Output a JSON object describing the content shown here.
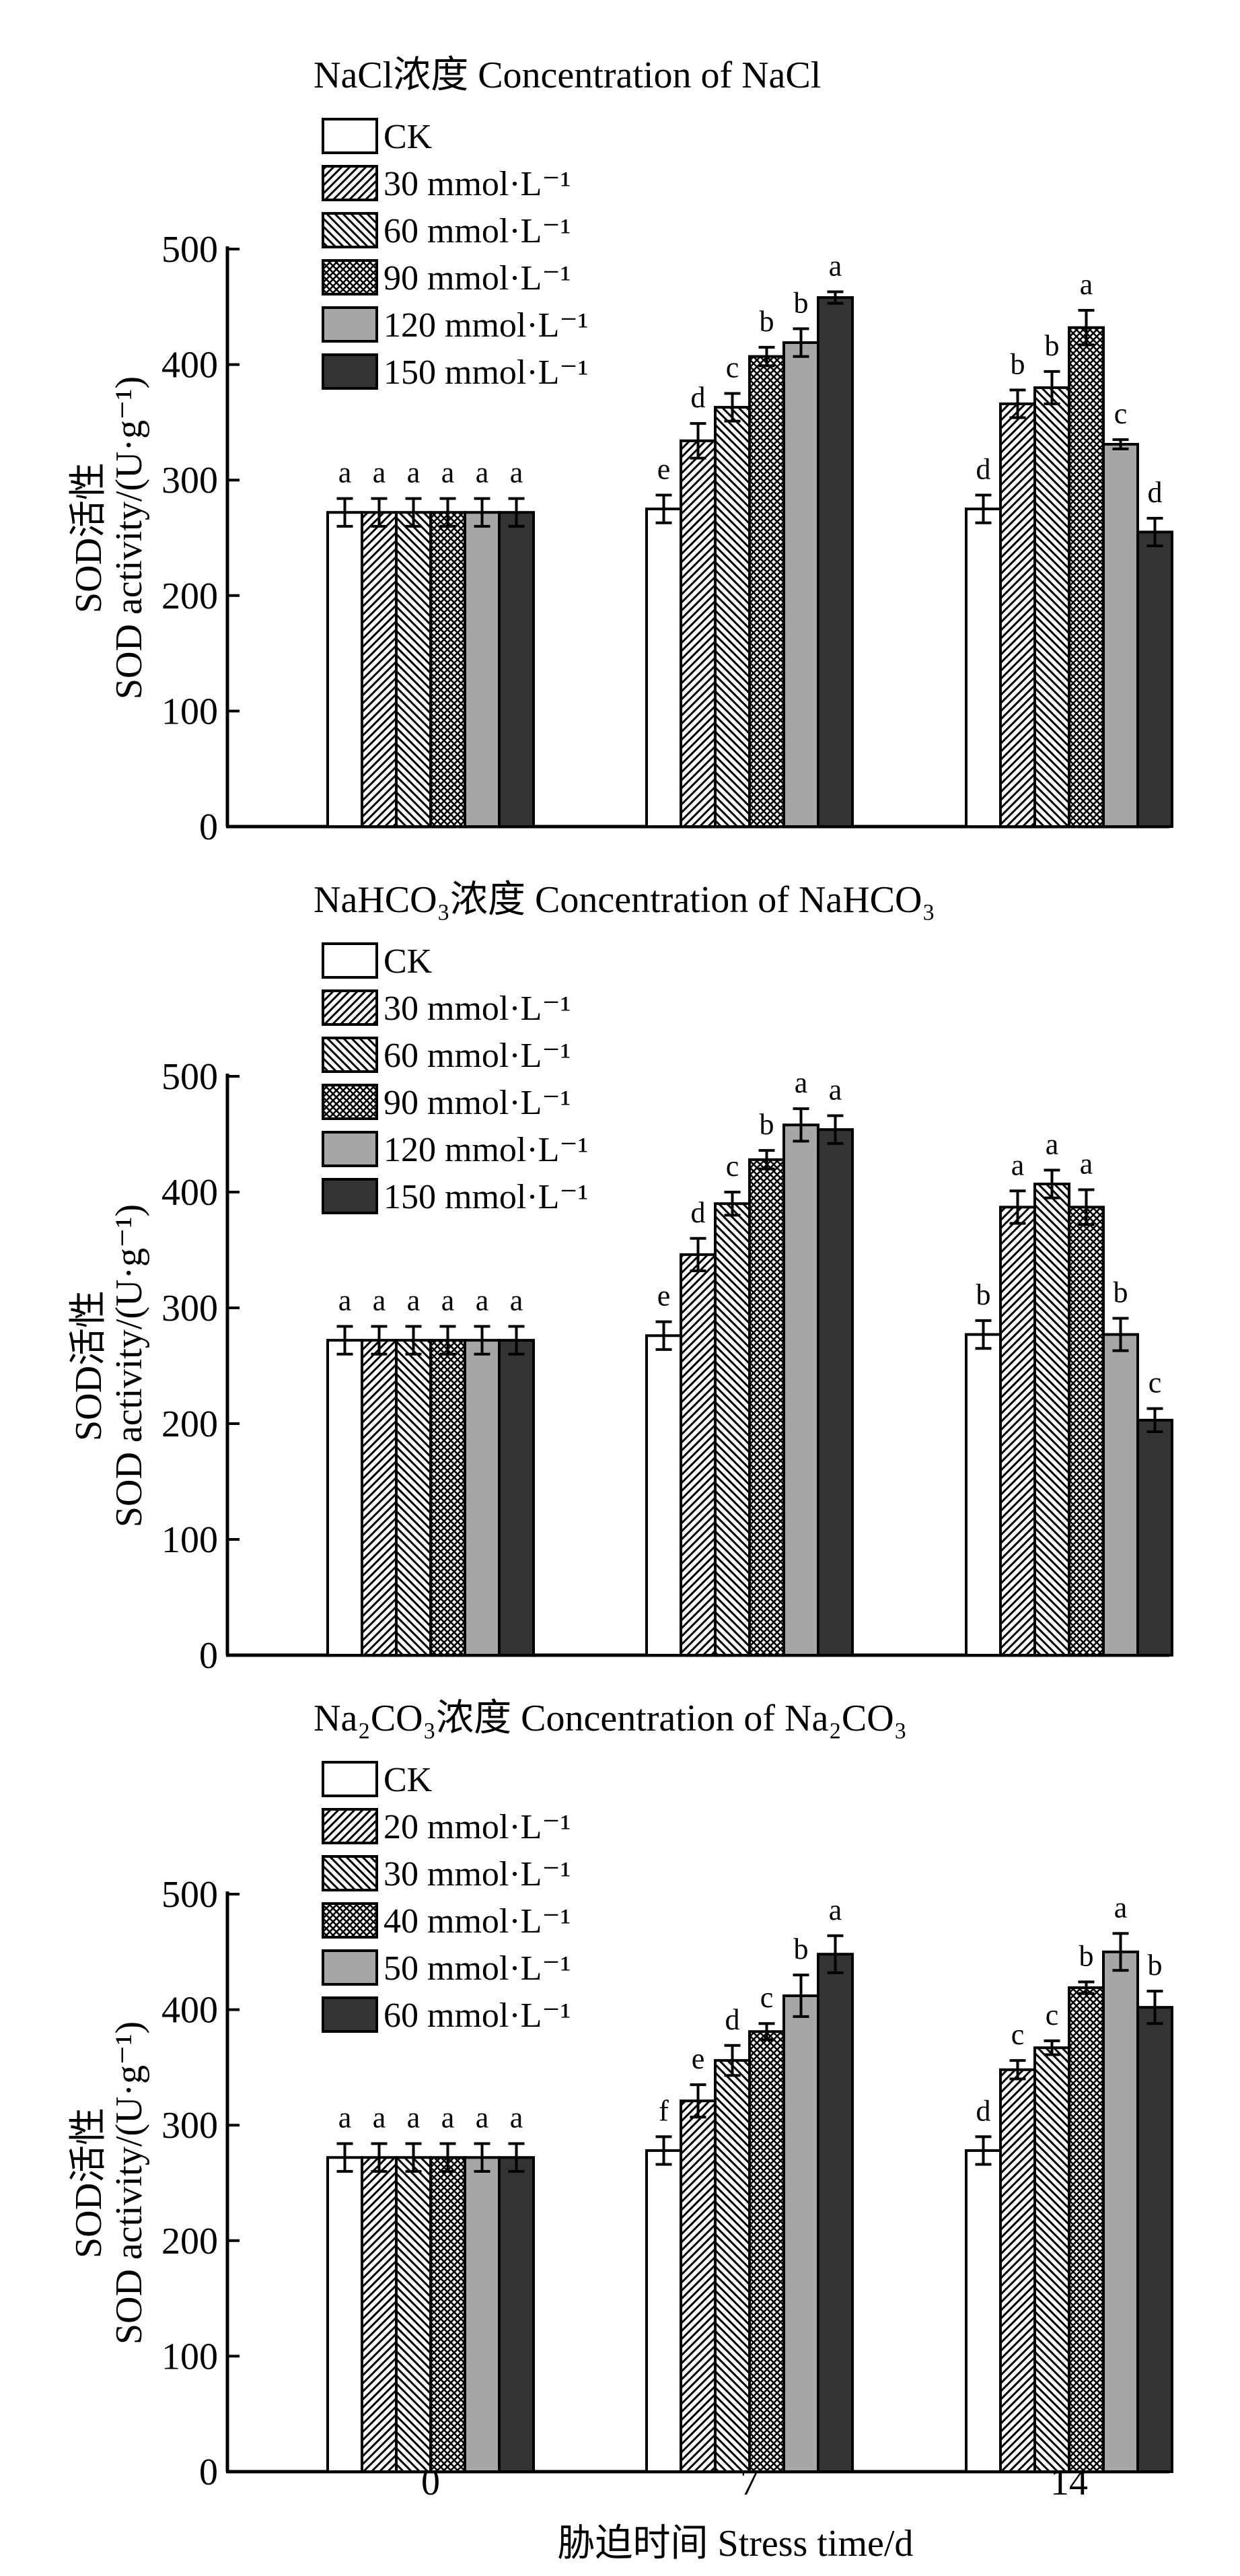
{
  "x_axis_title": "胁迫时间 Stress time/d",
  "chart_data": [
    {
      "type": "bar",
      "legend_title": "NaCl浓度 Concentration of NaCl",
      "ylabel_cn": "SOD活性",
      "ylabel_en": "SOD activity/(U·g⁻¹)",
      "ylim": [
        0,
        500
      ],
      "yticks": [
        0,
        100,
        200,
        300,
        400,
        500
      ],
      "categories": [
        "0",
        "7",
        "14"
      ],
      "series": [
        {
          "name": "CK",
          "values": [
            272,
            275,
            275
          ],
          "errors": [
            12,
            12,
            12
          ],
          "letters": [
            "a",
            "e",
            "d"
          ]
        },
        {
          "name": "30 mmol·L⁻¹",
          "values": [
            272,
            334,
            366
          ],
          "errors": [
            12,
            15,
            12
          ],
          "letters": [
            "a",
            "d",
            "b"
          ]
        },
        {
          "name": "60 mmol·L⁻¹",
          "values": [
            272,
            363,
            380
          ],
          "errors": [
            12,
            12,
            14
          ],
          "letters": [
            "a",
            "c",
            "b"
          ]
        },
        {
          "name": "90 mmol·L⁻¹",
          "values": [
            272,
            407,
            432
          ],
          "errors": [
            12,
            8,
            15
          ],
          "letters": [
            "a",
            "b",
            "a"
          ]
        },
        {
          "name": "120 mmol·L⁻¹",
          "values": [
            272,
            419,
            331
          ],
          "errors": [
            12,
            12,
            4
          ],
          "letters": [
            "a",
            "b",
            "c"
          ]
        },
        {
          "name": "150 mmol·L⁻¹",
          "values": [
            272,
            458,
            255
          ],
          "errors": [
            12,
            5,
            12
          ],
          "letters": [
            "a",
            "a",
            "d"
          ]
        }
      ]
    },
    {
      "type": "bar",
      "legend_title": "NaHCO₃浓度 Concentration of NaHCO₃",
      "ylabel_cn": "SOD活性",
      "ylabel_en": "SOD activity/(U·g⁻¹)",
      "ylim": [
        0,
        500
      ],
      "yticks": [
        0,
        100,
        200,
        300,
        400,
        500
      ],
      "categories": [
        "0",
        "7",
        "14"
      ],
      "series": [
        {
          "name": "CK",
          "values": [
            272,
            276,
            277
          ],
          "errors": [
            12,
            12,
            12
          ],
          "letters": [
            "a",
            "e",
            "b"
          ]
        },
        {
          "name": "30 mmol·L⁻¹",
          "values": [
            272,
            346,
            387
          ],
          "errors": [
            12,
            14,
            14
          ],
          "letters": [
            "a",
            "d",
            "a"
          ]
        },
        {
          "name": "60 mmol·L⁻¹",
          "values": [
            272,
            390,
            407
          ],
          "errors": [
            12,
            10,
            12
          ],
          "letters": [
            "a",
            "c",
            "a"
          ]
        },
        {
          "name": "90 mmol·L⁻¹",
          "values": [
            272,
            428,
            387
          ],
          "errors": [
            12,
            8,
            15
          ],
          "letters": [
            "a",
            "b",
            "a"
          ]
        },
        {
          "name": "120 mmol·L⁻¹",
          "values": [
            272,
            458,
            277
          ],
          "errors": [
            12,
            14,
            14
          ],
          "letters": [
            "a",
            "a",
            "b"
          ]
        },
        {
          "name": "150 mmol·L⁻¹",
          "values": [
            272,
            454,
            203
          ],
          "errors": [
            12,
            12,
            10
          ],
          "letters": [
            "a",
            "a",
            "c"
          ]
        }
      ]
    },
    {
      "type": "bar",
      "legend_title": "Na₂CO₃浓度 Concentration of Na₂CO₃",
      "ylabel_cn": "SOD活性",
      "ylabel_en": "SOD activity/(U·g⁻¹)",
      "ylim": [
        0,
        500
      ],
      "yticks": [
        0,
        100,
        200,
        300,
        400,
        500
      ],
      "categories": [
        "0",
        "7",
        "14"
      ],
      "series": [
        {
          "name": "CK",
          "values": [
            272,
            278,
            278
          ],
          "errors": [
            12,
            12,
            12
          ],
          "letters": [
            "a",
            "f",
            "d"
          ]
        },
        {
          "name": "20 mmol·L⁻¹",
          "values": [
            272,
            321,
            348
          ],
          "errors": [
            12,
            14,
            8
          ],
          "letters": [
            "a",
            "e",
            "c"
          ]
        },
        {
          "name": "30 mmol·L⁻¹",
          "values": [
            272,
            356,
            367
          ],
          "errors": [
            12,
            13,
            6
          ],
          "letters": [
            "a",
            "d",
            "c"
          ]
        },
        {
          "name": "40 mmol·L⁻¹",
          "values": [
            272,
            381,
            419
          ],
          "errors": [
            12,
            7,
            5
          ],
          "letters": [
            "a",
            "c",
            "b"
          ]
        },
        {
          "name": "50 mmol·L⁻¹",
          "values": [
            272,
            412,
            450
          ],
          "errors": [
            12,
            18,
            16
          ],
          "letters": [
            "a",
            "b",
            "a"
          ]
        },
        {
          "name": "60 mmol·L⁻¹",
          "values": [
            272,
            448,
            402
          ],
          "errors": [
            12,
            16,
            14
          ],
          "letters": [
            "a",
            "a",
            "b"
          ]
        }
      ]
    }
  ]
}
